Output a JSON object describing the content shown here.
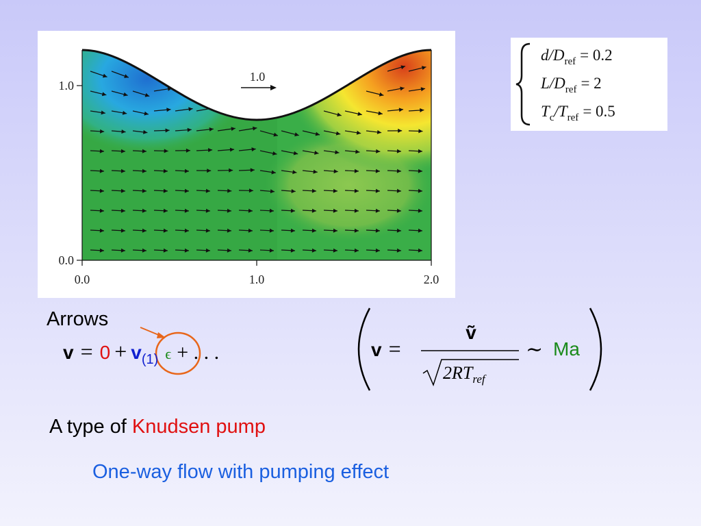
{
  "figure": {
    "x_ticks": [
      "0.0",
      "1.0",
      "2.0"
    ],
    "y_ticks": [
      "0.0",
      "1.0"
    ],
    "arrow_scale_label": "1.0"
  },
  "parameters": [
    {
      "lhs": "d/D",
      "sub": "ref",
      "rhs": "= 0.2"
    },
    {
      "lhs": "L/D",
      "sub": "ref",
      "rhs": "= 2"
    },
    {
      "lhs": "T",
      "lhs_sub": "c",
      "mid": "/T",
      "sub": "ref",
      "rhs": "= 0.5"
    }
  ],
  "annotation": "Arrows",
  "expansion": {
    "v": "v",
    "eq": "=",
    "zero": "0",
    "plus": "+",
    "v1": "v",
    "v1_sub": "(1)",
    "eps": "ϵ",
    "tail": "+ . . ."
  },
  "definition": {
    "lhs": "v",
    "eq": "=",
    "numerator": "ṽ",
    "radicand": "2RT",
    "radicand_sub": "ref",
    "sim": "∼",
    "rhs": "Ma"
  },
  "caption": {
    "prefix": "A type of",
    "highlight": "Knudsen pump"
  },
  "subcaption": "One-way flow with pumping effect"
}
